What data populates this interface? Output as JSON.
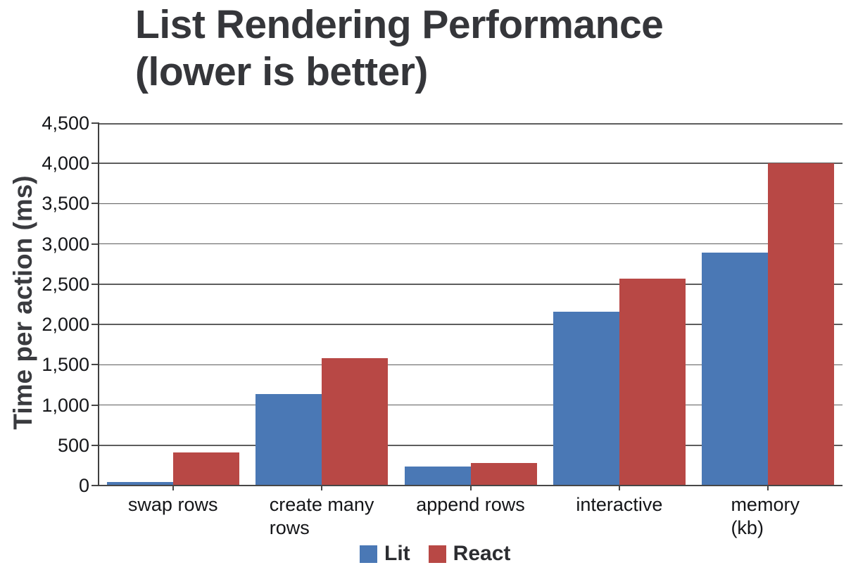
{
  "title": {
    "line1": "List Rendering Performance",
    "line2": "(lower is better)"
  },
  "chart_data": {
    "type": "bar",
    "title": "List Rendering Performance (lower is better)",
    "xlabel": "",
    "ylabel": "Time per action (ms)",
    "categories": [
      "swap rows",
      "create many\nrows",
      "append rows",
      "interactive",
      "memory (kb)"
    ],
    "series": [
      {
        "name": "Lit",
        "color": "#4a78b5",
        "values": [
          40,
          1135,
          240,
          2160,
          2890
        ]
      },
      {
        "name": "React",
        "color": "#b84845",
        "values": [
          410,
          1585,
          280,
          2570,
          4000
        ]
      }
    ],
    "ylim": [
      0,
      4500
    ],
    "ytick_step": 500,
    "ytick_labels": [
      "0",
      "500",
      "1,000",
      "1,500",
      "2,000",
      "2,500",
      "3,000",
      "3,500",
      "4,000",
      "4,500"
    ],
    "grid": true,
    "legend_position": "bottom"
  },
  "colors": {
    "title_text": "#35363a",
    "axis_text": "#141518",
    "gridline": "#5d5d5d",
    "axis_line": "#474747",
    "series_lit": "#4a78b5",
    "series_react": "#b84845",
    "background": "#ffffff"
  }
}
